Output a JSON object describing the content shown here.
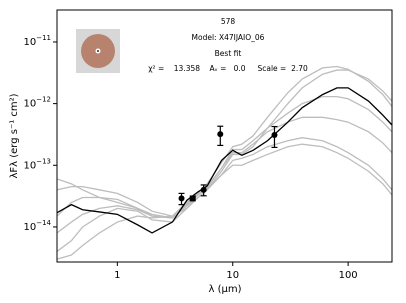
{
  "chart_data": {
    "type": "sed",
    "xlabel": "λ (μm)",
    "ylabel": "λFλ (erg s⁻¹ cm²)",
    "annotations": [
      "578",
      "Model: X47IJAIO_06",
      "Best fit",
      "χ² =    13.358    Aᵥ =   0.0     Scale =  2.70"
    ],
    "xscale": "log",
    "yscale": "log",
    "xlim": [
      0.3,
      240
    ],
    "ylim": [
      2.7e-15,
      3.3e-11
    ],
    "xticks": [
      1,
      10,
      100
    ],
    "yticks": [
      {
        "value": 1e-14,
        "label": "10−14"
      },
      {
        "value": 1e-13,
        "label": "10−13"
      },
      {
        "value": 1e-12,
        "label": "10−12"
      },
      {
        "value": 1e-11,
        "label": "10−11"
      }
    ],
    "x": [
      0.3,
      0.4,
      0.5,
      0.7,
      1,
      1.5,
      2,
      3,
      4,
      5,
      6,
      8,
      10,
      12,
      15,
      20,
      30,
      40,
      60,
      80,
      100,
      150,
      200,
      240
    ],
    "series": [
      {
        "color": "#bdbdbd",
        "values": [
          4e-14,
          4.5e-14,
          4.5e-14,
          4e-14,
          3.5e-14,
          2.5e-14,
          1.8e-14,
          1.5e-14,
          2e-14,
          3e-14,
          4e-14,
          8e-14,
          1.5e-13,
          1.5e-13,
          2e-13,
          4e-13,
          1e-12,
          1.8e-12,
          3e-12,
          3.5e-12,
          3.5e-12,
          2.5e-12,
          1.6e-12,
          1.1e-12
        ]
      },
      {
        "color": "#bdbdbd",
        "values": [
          4e-15,
          6e-15,
          1e-14,
          1.5e-14,
          2e-14,
          1.8e-14,
          1.3e-14,
          1.2e-14,
          2e-14,
          3e-14,
          4e-14,
          7e-14,
          1.2e-13,
          1.3e-13,
          1.5e-13,
          2e-13,
          2.5e-13,
          2.8e-13,
          2.5e-13,
          2e-13,
          1.6e-13,
          1e-13,
          6e-14,
          4e-14
        ]
      },
      {
        "color": "#bdbdbd",
        "values": [
          1.5e-14,
          2.5e-14,
          3e-14,
          3e-14,
          2.8e-14,
          2e-14,
          1.5e-14,
          1.4e-14,
          2.3e-14,
          3.3e-14,
          4.5e-14,
          9e-14,
          1.8e-13,
          1.8e-13,
          2.5e-13,
          4e-13,
          7e-13,
          1e-12,
          1.3e-12,
          1.3e-12,
          1.2e-12,
          8e-13,
          5e-13,
          3.5e-13
        ]
      },
      {
        "color": "#bdbdbd",
        "values": [
          3e-15,
          3.5e-15,
          5e-15,
          8e-15,
          1.2e-14,
          1.5e-14,
          1.4e-14,
          1.5e-14,
          2.5e-14,
          3.5e-14,
          5e-14,
          1.1e-13,
          2e-13,
          2.2e-13,
          3e-13,
          6e-13,
          1.5e-12,
          2.5e-12,
          3.8e-12,
          4e-12,
          3.6e-12,
          2.3e-12,
          1.4e-12,
          9e-13
        ]
      },
      {
        "color": "#bdbdbd",
        "values": [
          6e-14,
          5e-14,
          4e-14,
          3e-14,
          2.5e-14,
          2e-14,
          1.6e-14,
          1.4e-14,
          2.2e-14,
          3e-14,
          4e-14,
          7e-14,
          1e-13,
          1e-13,
          1.2e-13,
          1.5e-13,
          2e-13,
          2.2e-13,
          2e-13,
          1.6e-13,
          1.3e-13,
          8e-14,
          5e-14,
          3.3e-14
        ]
      },
      {
        "color": "#bdbdbd",
        "values": [
          8e-15,
          1.2e-14,
          1.6e-14,
          2e-14,
          2.2e-14,
          1.9e-14,
          1.5e-14,
          1.4e-14,
          2.4e-14,
          3.3e-14,
          4.3e-14,
          9e-14,
          1.6e-13,
          1.6e-13,
          2.2e-13,
          3.5e-13,
          5e-13,
          6e-13,
          6e-13,
          5.5e-13,
          5e-13,
          3.5e-13,
          2.3e-13,
          1.6e-13
        ]
      },
      {
        "color": "#000000",
        "values": [
          1.7e-14,
          2.3e-14,
          1.9e-14,
          1.75e-14,
          1.6e-14,
          1.08e-14,
          8e-15,
          1.2e-14,
          2.7e-14,
          3.7e-14,
          4.6e-14,
          1.2e-13,
          1.75e-13,
          1.45e-13,
          1.75e-13,
          2.5e-13,
          5e-13,
          8.6e-13,
          1.4e-12,
          1.8e-12,
          1.8e-12,
          1.1e-12,
          6.5e-13,
          4.5e-13
        ]
      }
    ],
    "points": {
      "color": "#000000",
      "x": [
        3.6,
        4.5,
        5.6,
        7.8,
        23
      ],
      "values": [
        2.9e-14,
        2.9e-14,
        4e-14,
        3.2e-13,
        3.1e-13
      ],
      "yerr": [
        6e-15,
        null,
        8e-15,
        1.1e-13,
        1.15e-13
      ],
      "markers": [
        "o",
        "s",
        "o",
        "o",
        "o"
      ]
    }
  }
}
